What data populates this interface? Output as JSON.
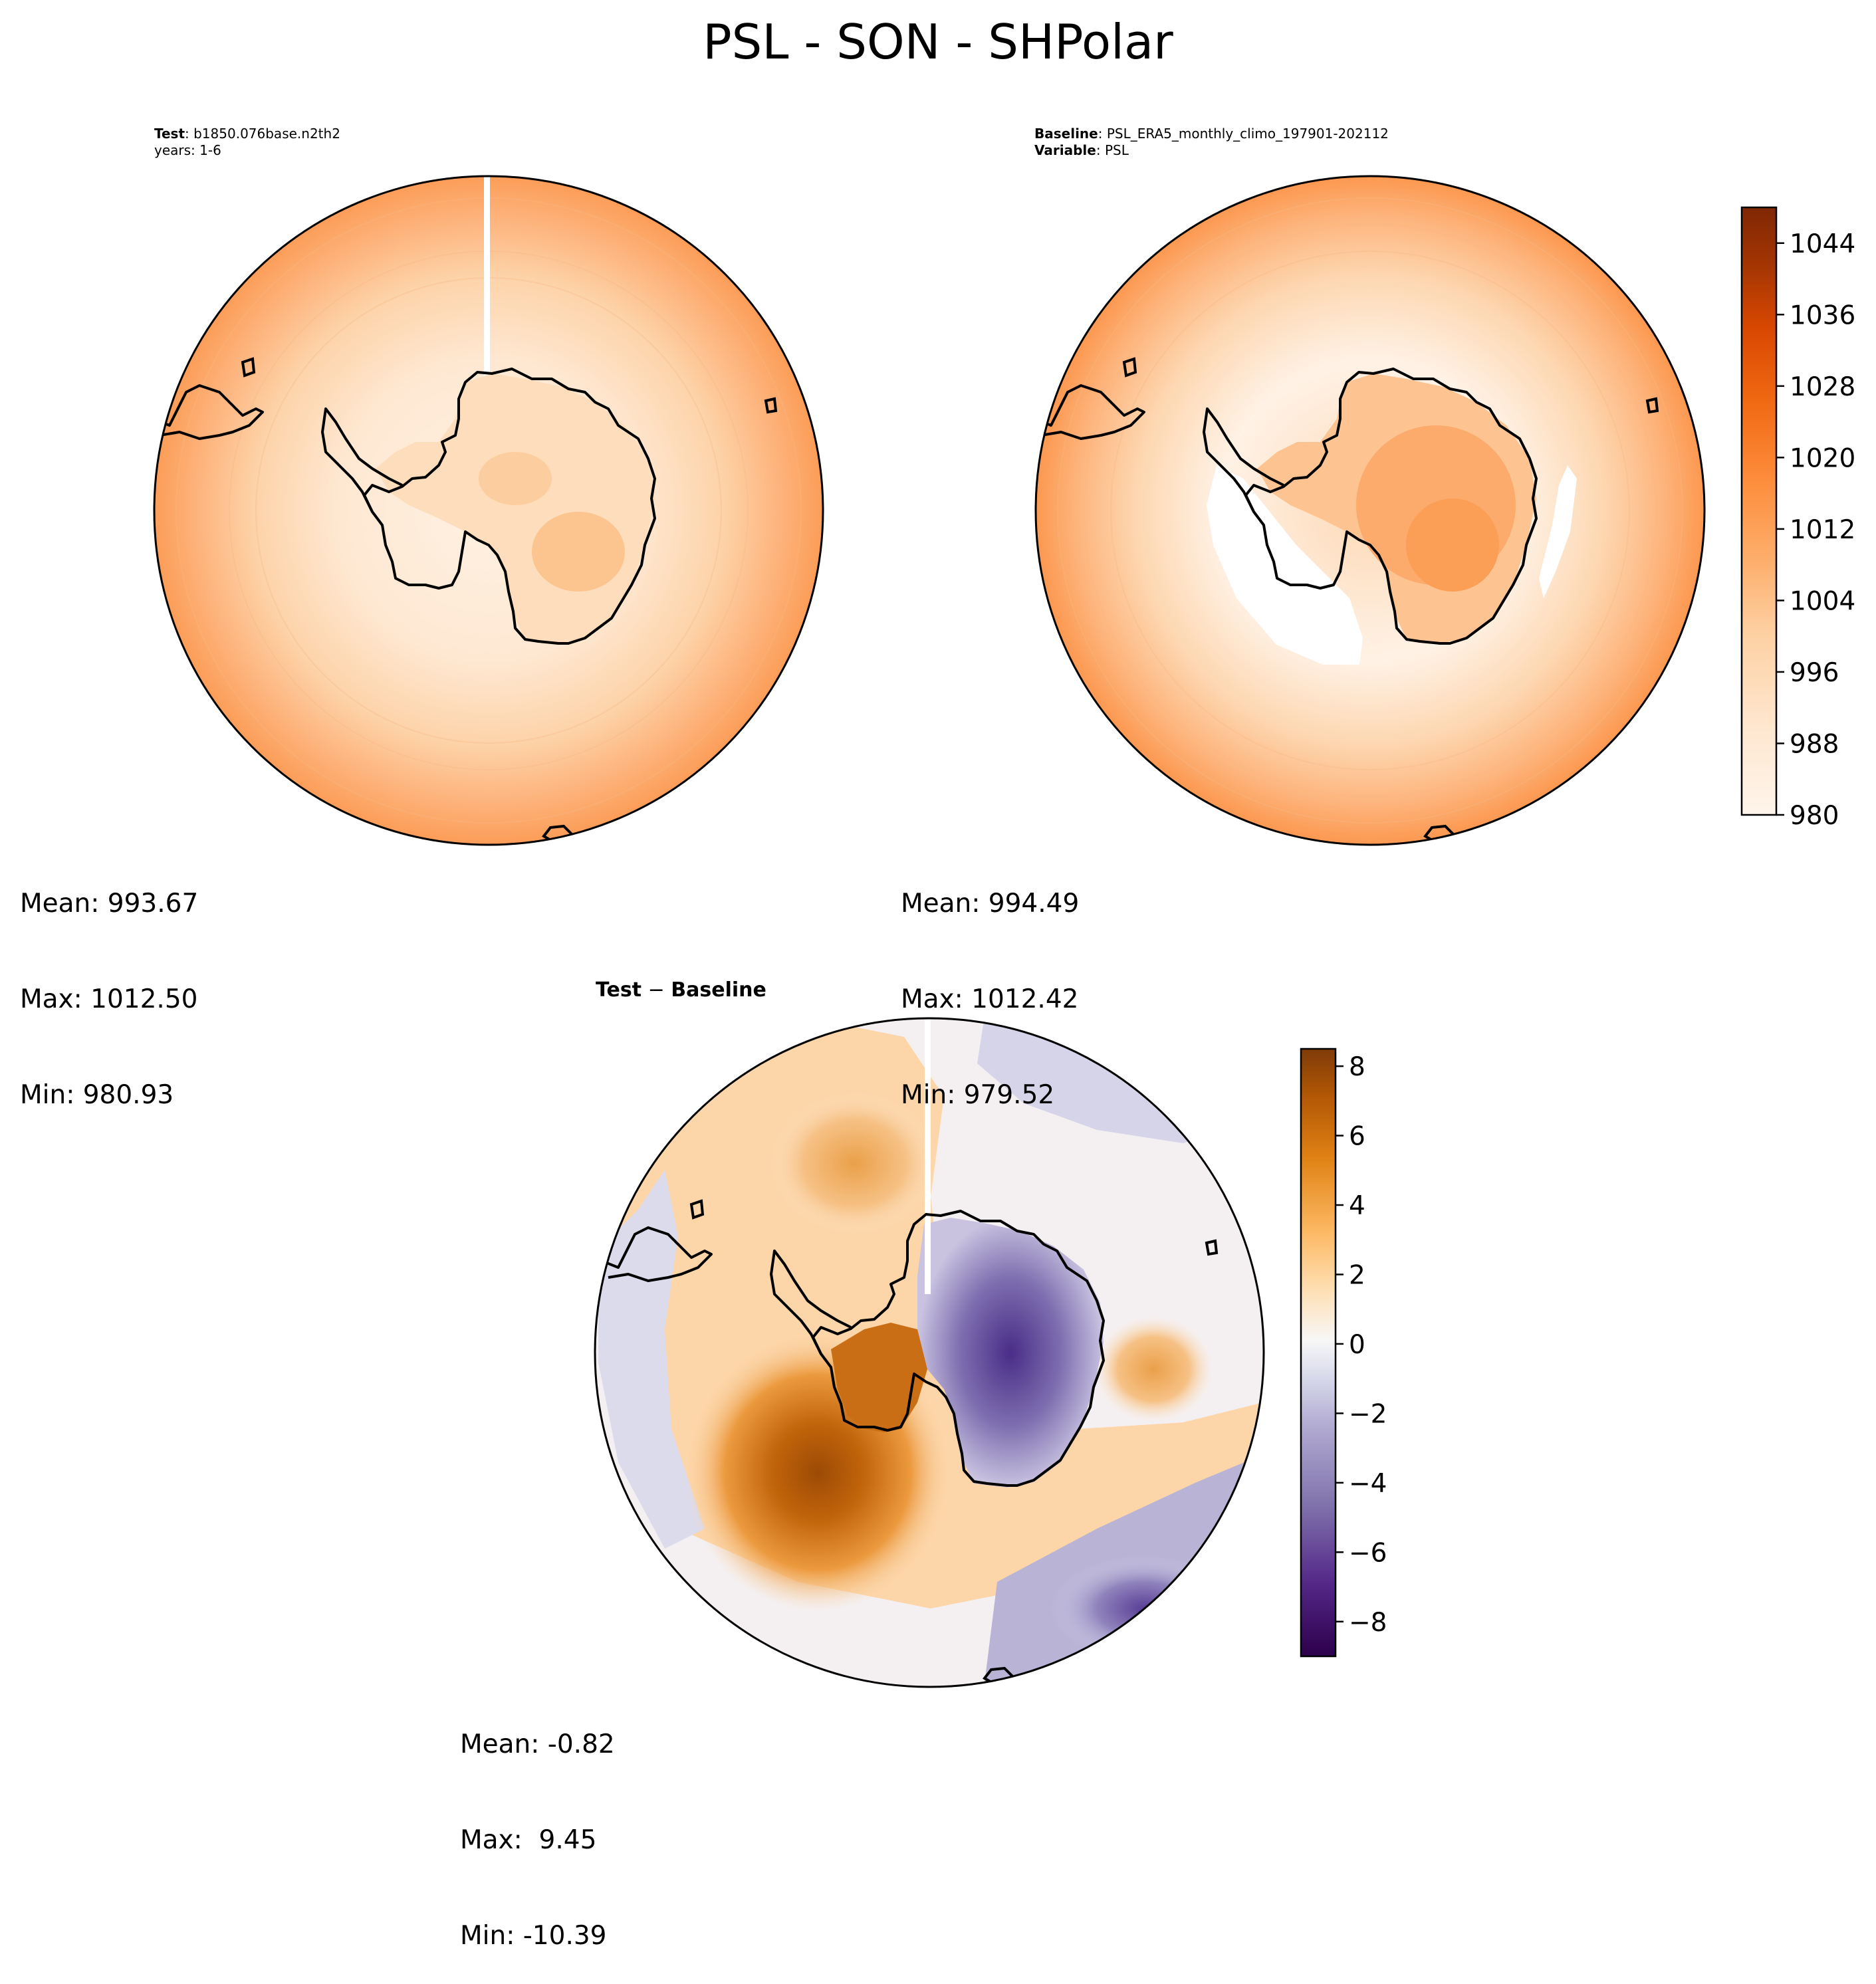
{
  "suptitle": "PSL - SON - SHPolar",
  "test_panel": {
    "label_bold": "Test",
    "label_value": ": b1850.076base.n2th2",
    "years": "years: 1-6",
    "stats": {
      "mean": "Mean: 993.67",
      "max": "Max: 1012.50",
      "min": "Min: 980.93"
    }
  },
  "baseline_panel": {
    "label_bold": "Baseline",
    "label_value": ": PSL_ERA5_monthly_climo_197901-202112",
    "variable_bold": "Variable",
    "variable_value": ": PSL",
    "stats": {
      "mean": "Mean: 994.49",
      "max": "Max: 1012.42",
      "min": "Min: 979.52"
    }
  },
  "diff_panel": {
    "title_bold_a": "Test",
    "title_sep": " − ",
    "title_bold_b": "Baseline",
    "stats": {
      "mean": "Mean: -0.82",
      "max": "Max:  9.45",
      "min": "Min: -10.39"
    }
  },
  "colorbar_abs": {
    "range": [
      980,
      1048
    ],
    "ticks": [
      "980",
      "988",
      "996",
      "1004",
      "1012",
      "1020",
      "1028",
      "1036",
      "1044"
    ],
    "colors_low_to_high": [
      "#fff5eb",
      "#fee6ce",
      "#fdd0a2",
      "#fdae6b",
      "#fd8d3c",
      "#f16913",
      "#d94801",
      "#a63603",
      "#7f2704"
    ]
  },
  "colorbar_diff": {
    "range": [
      -9,
      8.5
    ],
    "ticks": [
      "−8",
      "−6",
      "−4",
      "−2",
      "0",
      "2",
      "4",
      "6",
      "8"
    ],
    "colors_low_to_high": [
      "#2d004b",
      "#542788",
      "#8073ac",
      "#b2abd2",
      "#d8daeb",
      "#f7f7f7",
      "#fee0b6",
      "#fdb863",
      "#e08214",
      "#b35806",
      "#7f3b08"
    ]
  }
}
